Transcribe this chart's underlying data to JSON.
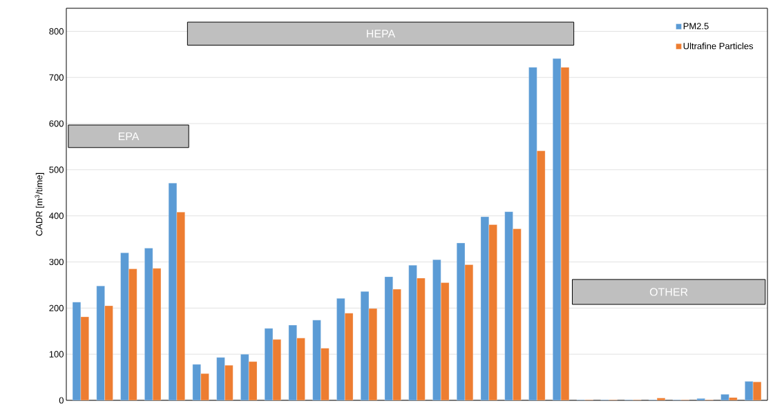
{
  "chart_data": {
    "type": "bar",
    "ylabel": "CADR [m$^{3}$/time]",
    "categories": [
      null,
      null,
      null,
      null,
      null,
      null,
      null,
      null,
      null,
      null,
      null,
      null,
      null,
      null,
      null,
      null,
      null,
      null,
      null,
      null,
      null,
      null,
      null,
      null,
      null,
      null,
      null,
      null,
      null
    ],
    "series": [
      {
        "name": "PM2.5",
        "color": "#5b9bd5",
        "values": [
          213,
          248,
          320,
          330,
          471,
          78,
          93,
          100,
          156,
          163,
          174,
          221,
          236,
          268,
          293,
          305,
          341,
          398,
          409,
          722,
          741,
          1,
          1,
          1,
          1,
          1,
          4,
          13,
          41
        ]
      },
      {
        "name": "Ultrafine Particles",
        "color": "#ed7d31",
        "values": [
          181,
          205,
          285,
          286,
          408,
          58,
          76,
          84,
          132,
          135,
          113,
          189,
          199,
          241,
          265,
          255,
          294,
          381,
          372,
          541,
          722,
          1,
          1,
          1,
          5,
          1,
          1,
          6,
          40
        ]
      }
    ],
    "ylim": [
      0,
      850
    ],
    "yticks": [
      0,
      100,
      200,
      300,
      400,
      500,
      600,
      700,
      800
    ],
    "grid": "y",
    "legend": "top right",
    "annotations": [
      "EPA",
      "HEPA",
      "OTHER"
    ]
  }
}
